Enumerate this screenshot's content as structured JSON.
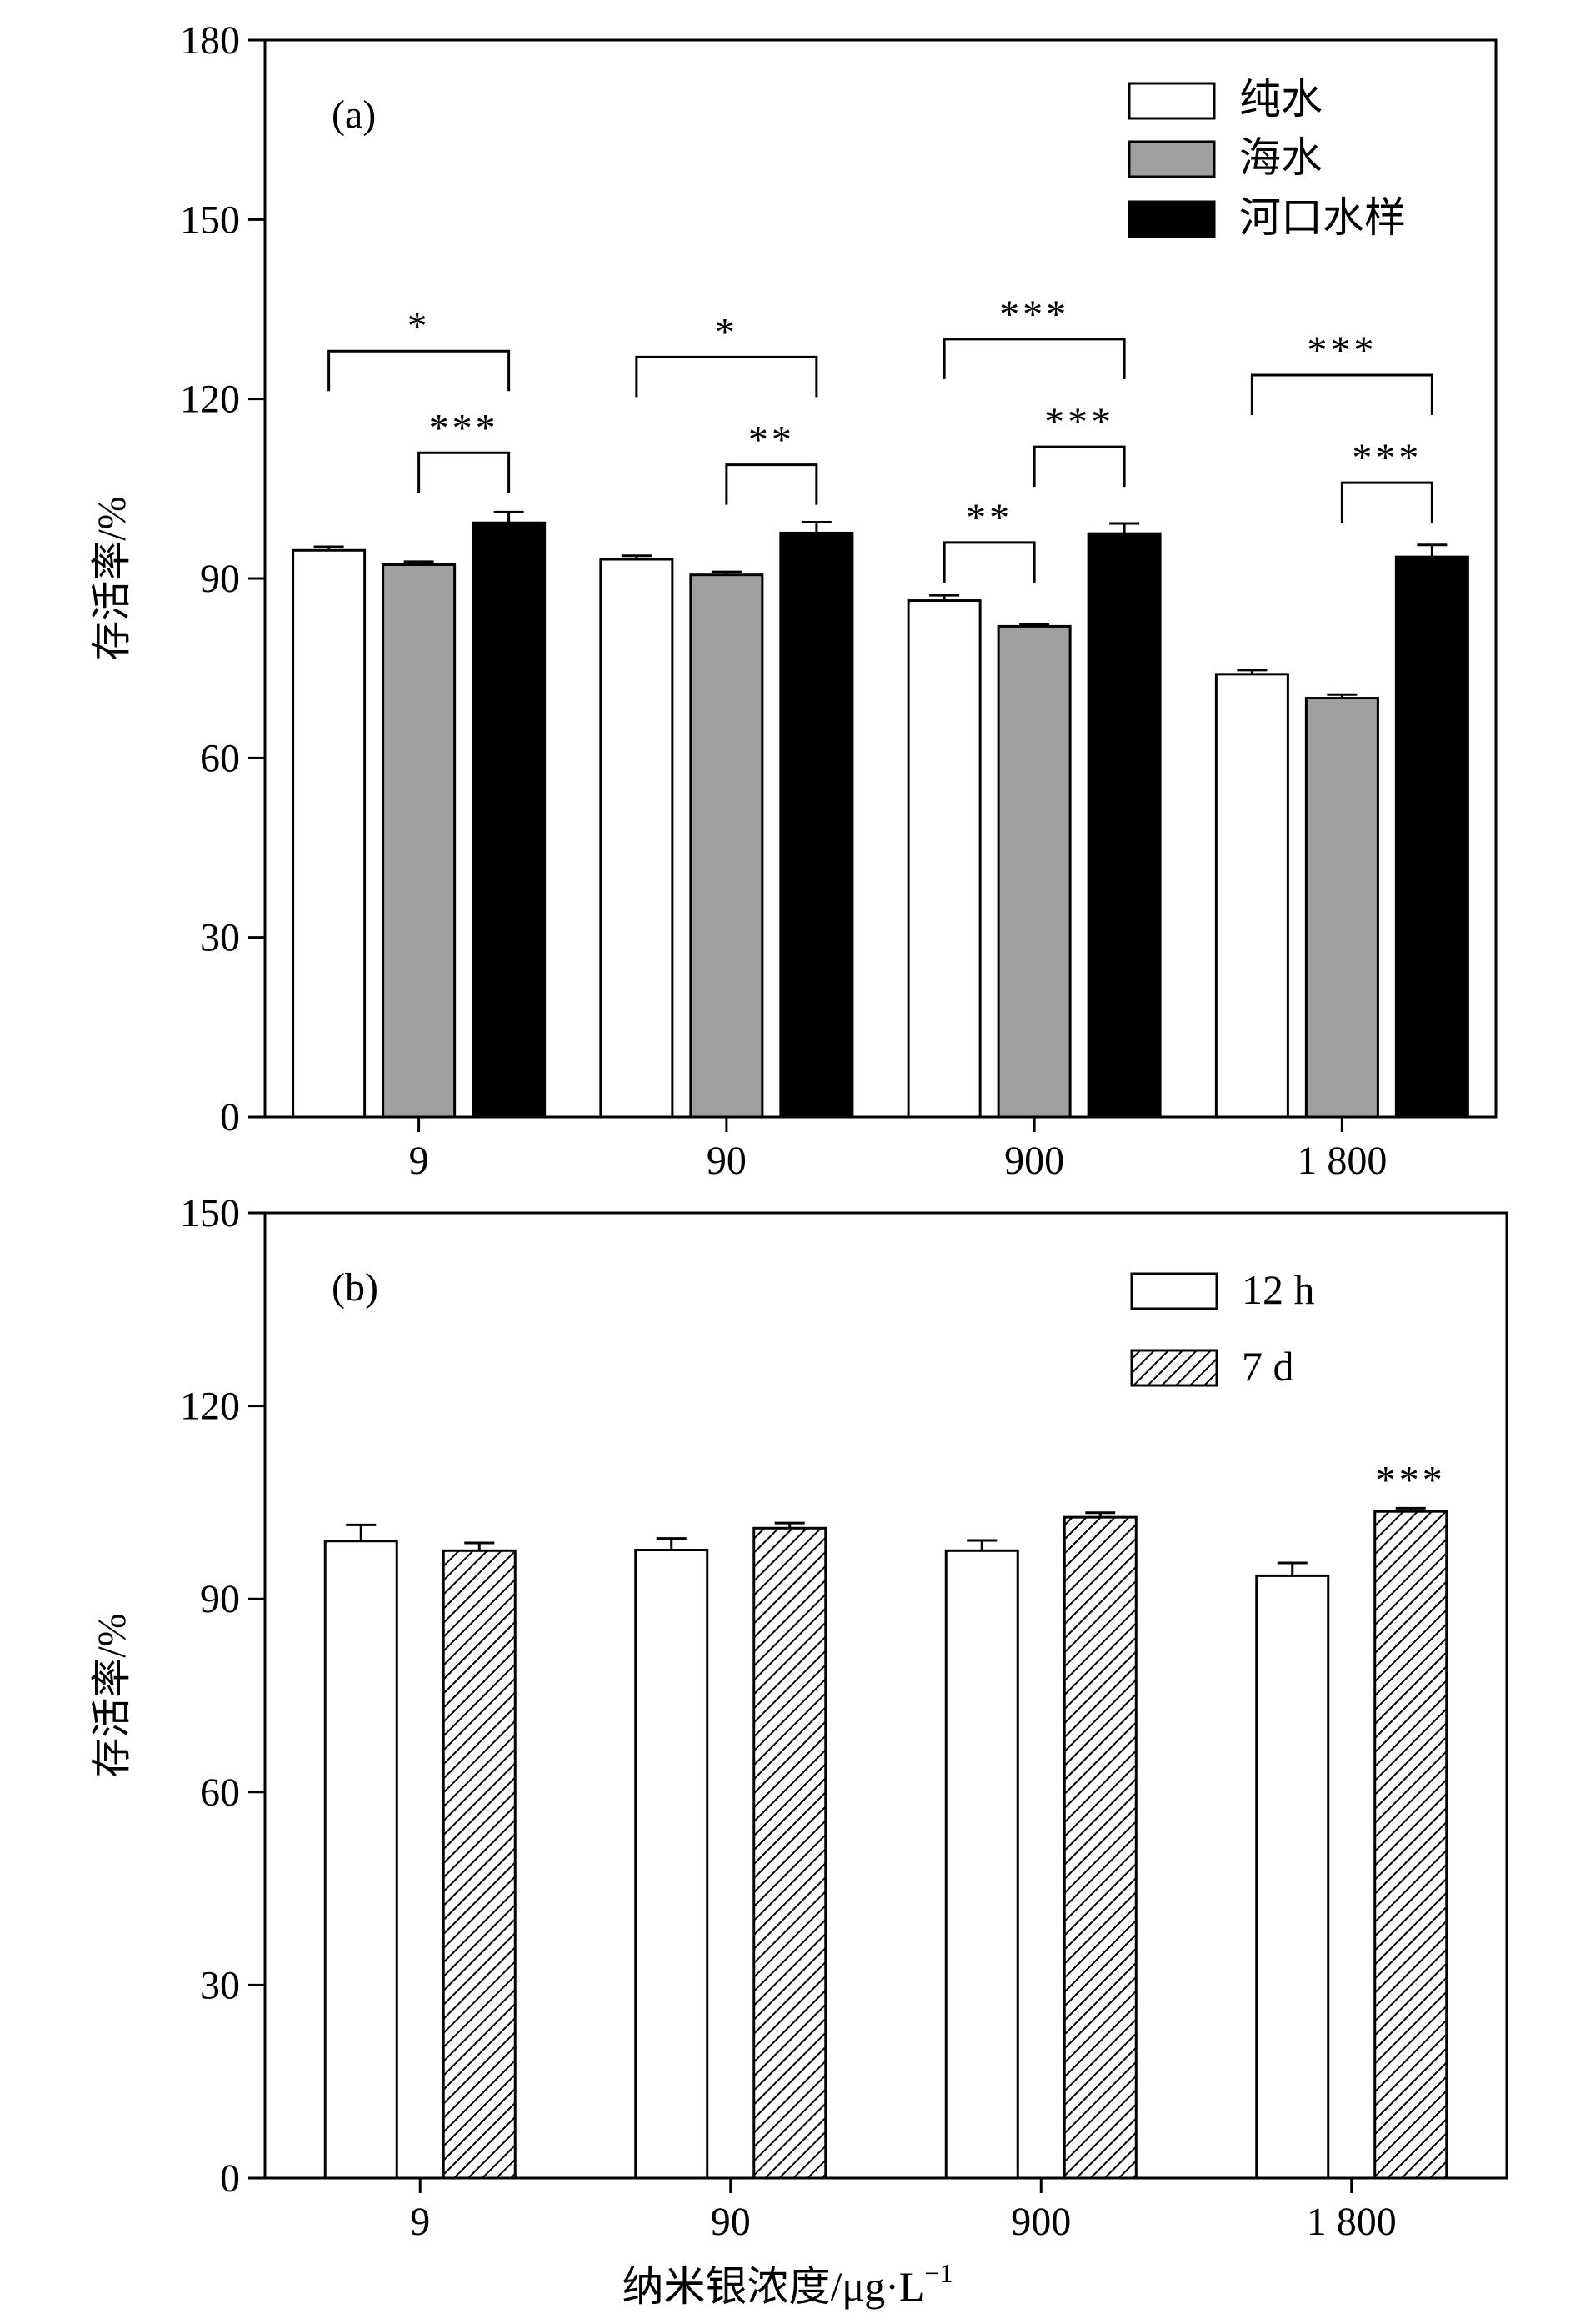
{
  "figure": {
    "xlabel": "纳米银浓度/μg·L",
    "xlabel_sup": "−1"
  },
  "chart_data": [
    {
      "type": "bar",
      "panel_label": "(a)",
      "categories": [
        "9",
        "90",
        "900",
        "1 800"
      ],
      "ylabel": "存活率/%",
      "ylim": [
        0,
        180
      ],
      "yticks": [
        0,
        30,
        60,
        90,
        120,
        150,
        180
      ],
      "legend_position": "top-right",
      "series": [
        {
          "name": "纯水",
          "fill": "#ffffff",
          "values": [
            94.7,
            93.2,
            86.3,
            74.0
          ],
          "errors": [
            0.6,
            0.6,
            0.9,
            0.7
          ]
        },
        {
          "name": "海水",
          "fill": "#a0a0a0",
          "values": [
            92.3,
            90.6,
            82.0,
            70.0
          ],
          "errors": [
            0.5,
            0.5,
            0.4,
            0.6
          ]
        },
        {
          "name": "河口水样",
          "fill": "#000000",
          "values": [
            99.3,
            97.6,
            97.5,
            93.6
          ],
          "errors": [
            1.8,
            1.8,
            1.7,
            2.0
          ]
        }
      ],
      "annotations": [
        {
          "category": 0,
          "from": 0,
          "to": 2,
          "label": "*",
          "y": 128
        },
        {
          "category": 0,
          "from": 1,
          "to": 2,
          "label": "***",
          "y": 111
        },
        {
          "category": 1,
          "from": 0,
          "to": 2,
          "label": "*",
          "y": 127
        },
        {
          "category": 1,
          "from": 1,
          "to": 2,
          "label": "**",
          "y": 109
        },
        {
          "category": 2,
          "from": 0,
          "to": 2,
          "label": "***",
          "y": 130
        },
        {
          "category": 2,
          "from": 1,
          "to": 2,
          "label": "***",
          "y": 112
        },
        {
          "category": 2,
          "from": 0,
          "to": 1,
          "label": "**",
          "y": 96
        },
        {
          "category": 3,
          "from": 0,
          "to": 2,
          "label": "***",
          "y": 124
        },
        {
          "category": 3,
          "from": 1,
          "to": 2,
          "label": "***",
          "y": 106
        }
      ]
    },
    {
      "type": "bar",
      "panel_label": "(b)",
      "categories": [
        "9",
        "90",
        "900",
        "1 800"
      ],
      "ylabel": "存活率/%",
      "ylim": [
        0,
        150
      ],
      "yticks": [
        0,
        30,
        60,
        90,
        120,
        150
      ],
      "legend_position": "top-right",
      "series": [
        {
          "name": "12 h",
          "fill": "#ffffff",
          "values": [
            99.0,
            97.6,
            97.5,
            93.6
          ],
          "errors": [
            2.5,
            1.8,
            1.6,
            2.0
          ]
        },
        {
          "name": "7 d",
          "fill": "hatch",
          "values": [
            97.5,
            101.0,
            102.7,
            103.6
          ],
          "errors": [
            1.2,
            0.8,
            0.7,
            0.5
          ]
        }
      ],
      "annotations": [
        {
          "category": 3,
          "series": 1,
          "label": "***"
        }
      ]
    }
  ]
}
